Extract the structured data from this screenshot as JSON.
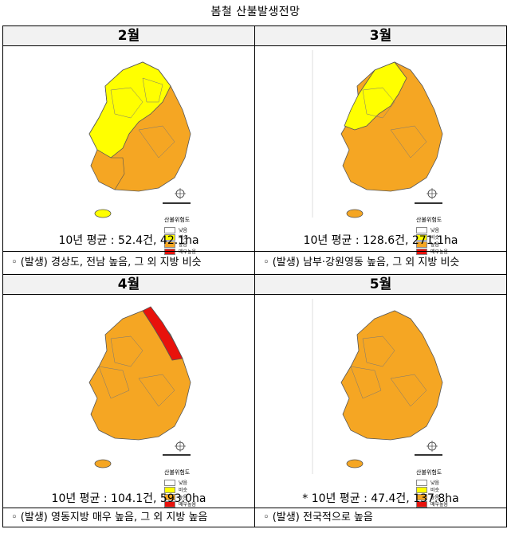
{
  "page_title": "봄철  산불발생전망",
  "panels": [
    {
      "month": "2월",
      "average": "10년 평균 : 52.4건, 42.1ha",
      "note": "◦ (발생) 경상도, 전남 높음, 그 외 지방 비슷",
      "legend_title": "산불위험도",
      "legend_items": [
        "낮음",
        "비슷",
        "높음",
        "매우높음"
      ]
    },
    {
      "month": "3월",
      "average": "10년 평균 : 128.6건, 271.1ha",
      "note": "◦ (발생) 남부·강원영동 높음, 그 외 지방 비슷",
      "legend_title": "산불위험도",
      "legend_items": [
        "낮음",
        "비슷",
        "높음",
        "매우높음"
      ]
    },
    {
      "month": "4월",
      "average": "10년 평균 : 104.1건, 593.0ha",
      "note": "◦ (발생) 영동지방 매우 높음, 그 외 지방 높음",
      "legend_title": "산불위험도",
      "legend_items": [
        "낮음",
        "비슷",
        "높음",
        "매우높음"
      ]
    },
    {
      "month": "5월",
      "average": "* 10년 평균 : 47.4건, 137.8ha",
      "note": "◦ (발생) 전국적으로 높음",
      "legend_title": "산불위험도",
      "legend_items": [
        "낮음",
        "비슷",
        "높음",
        "매우높음"
      ]
    }
  ],
  "colors": {
    "low": "#ffffff",
    "similar": "#ffff00",
    "high": "#f5a623",
    "very_high": "#e8120c"
  }
}
